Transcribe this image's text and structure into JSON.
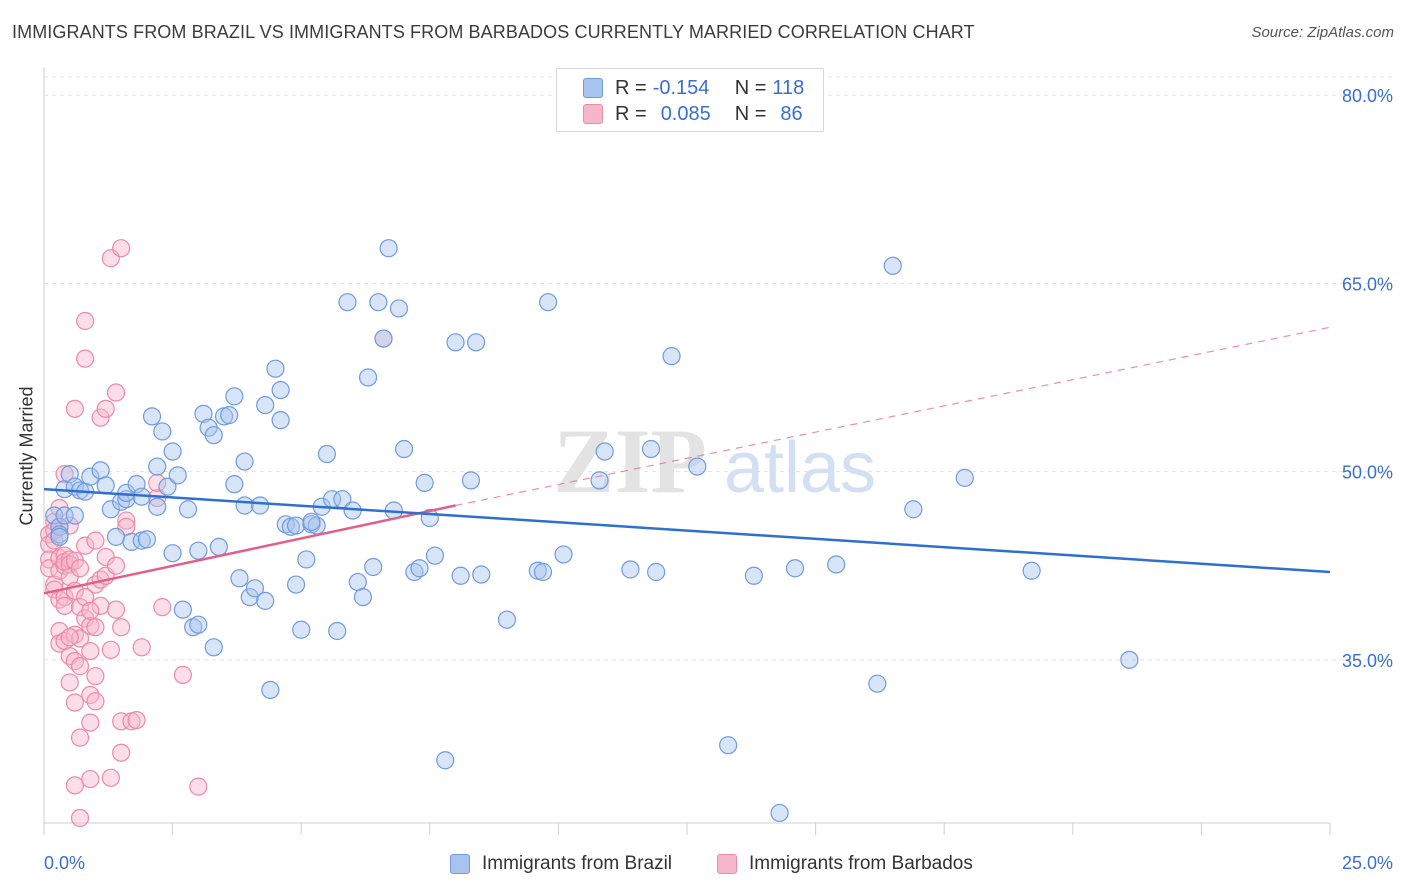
{
  "title": "IMMIGRANTS FROM BRAZIL VS IMMIGRANTS FROM BARBADOS CURRENTLY MARRIED CORRELATION CHART",
  "source": "Source: ZipAtlas.com",
  "legend": {
    "rows": [
      {
        "r_label": "R =",
        "r_value": "-0.154",
        "n_label": "N =",
        "n_value": "118"
      },
      {
        "r_label": "R =",
        "r_value": "0.085",
        "n_label": "N =",
        "n_value": "86"
      }
    ]
  },
  "watermark": {
    "zip": "ZIP",
    "atlas": "atlas"
  },
  "colors": {
    "brazil_fill": "#a8c4ee",
    "brazil_stroke": "#6f9be0",
    "brazil_line": "#2f6fd0",
    "barbados_fill": "#f6b6c9",
    "barbados_stroke": "#ec8aa8",
    "barbados_line": "#e0608a",
    "tick_label": "#3a6fd0",
    "grid": "#e1e1e1"
  },
  "chart_data": {
    "type": "scatter",
    "title": "IMMIGRANTS FROM BRAZIL VS IMMIGRANTS FROM BARBADOS CURRENTLY MARRIED CORRELATION CHART",
    "xlabel": "",
    "ylabel": "Currently Married",
    "xlim": [
      0,
      25
    ],
    "ylim": [
      22,
      82
    ],
    "x_tick_labels": [
      "0.0%",
      "25.0%"
    ],
    "y_ticks": [
      35,
      50,
      65,
      80
    ],
    "y_tick_labels": [
      "35.0%",
      "50.0%",
      "65.0%",
      "80.0%"
    ],
    "grid": "horizontal dashed",
    "legend_placement": "top-center and bottom",
    "series": [
      {
        "name": "Immigrants from Brazil",
        "r": -0.154,
        "n": 118,
        "trend": {
          "x": [
            0,
            25
          ],
          "y": [
            48.6,
            42.0
          ],
          "style": "solid"
        },
        "points": [
          [
            0.2,
            46.5
          ],
          [
            0.3,
            45.6
          ],
          [
            0.3,
            45.0
          ],
          [
            0.4,
            46.5
          ],
          [
            0.4,
            48.6
          ],
          [
            0.5,
            49.8
          ],
          [
            0.6,
            48.8
          ],
          [
            0.6,
            46.5
          ],
          [
            0.7,
            48.5
          ],
          [
            0.8,
            48.4
          ],
          [
            0.9,
            49.6
          ],
          [
            1.1,
            50.1
          ],
          [
            1.2,
            48.9
          ],
          [
            1.3,
            47.0
          ],
          [
            1.4,
            44.8
          ],
          [
            1.5,
            47.6
          ],
          [
            1.6,
            47.8
          ],
          [
            1.6,
            48.3
          ],
          [
            1.7,
            44.4
          ],
          [
            1.8,
            49.0
          ],
          [
            1.9,
            44.5
          ],
          [
            1.9,
            48.0
          ],
          [
            2.0,
            44.6
          ],
          [
            2.1,
            54.4
          ],
          [
            2.2,
            50.4
          ],
          [
            2.2,
            47.2
          ],
          [
            2.3,
            53.2
          ],
          [
            2.4,
            48.8
          ],
          [
            2.5,
            51.6
          ],
          [
            2.5,
            43.5
          ],
          [
            2.6,
            49.7
          ],
          [
            2.7,
            39.0
          ],
          [
            2.8,
            47.0
          ],
          [
            2.9,
            37.6
          ],
          [
            3.0,
            43.7
          ],
          [
            3.0,
            37.8
          ],
          [
            3.1,
            54.6
          ],
          [
            3.2,
            53.5
          ],
          [
            3.3,
            52.9
          ],
          [
            3.4,
            44.0
          ],
          [
            3.5,
            54.4
          ],
          [
            3.6,
            54.5
          ],
          [
            3.7,
            49.0
          ],
          [
            3.7,
            56.0
          ],
          [
            3.8,
            41.5
          ],
          [
            3.9,
            47.3
          ],
          [
            3.9,
            50.8
          ],
          [
            4.0,
            40.0
          ],
          [
            4.1,
            40.7
          ],
          [
            4.2,
            47.3
          ],
          [
            4.3,
            39.7
          ],
          [
            4.3,
            55.3
          ],
          [
            4.4,
            32.6
          ],
          [
            4.5,
            58.2
          ],
          [
            4.6,
            54.1
          ],
          [
            4.6,
            56.5
          ],
          [
            4.7,
            45.8
          ],
          [
            4.8,
            45.6
          ],
          [
            4.9,
            45.7
          ],
          [
            4.9,
            41.0
          ],
          [
            5.0,
            37.4
          ],
          [
            5.1,
            43.0
          ],
          [
            5.2,
            45.8
          ],
          [
            5.3,
            45.7
          ],
          [
            5.4,
            47.2
          ],
          [
            5.5,
            51.4
          ],
          [
            5.6,
            47.8
          ],
          [
            5.7,
            37.3
          ],
          [
            5.8,
            47.8
          ],
          [
            5.9,
            63.5
          ],
          [
            6.0,
            46.9
          ],
          [
            6.1,
            41.2
          ],
          [
            6.2,
            40.0
          ],
          [
            6.3,
            57.5
          ],
          [
            6.4,
            42.4
          ],
          [
            6.5,
            63.5
          ],
          [
            6.6,
            60.6
          ],
          [
            6.7,
            67.8
          ],
          [
            6.8,
            46.9
          ],
          [
            6.9,
            63.0
          ],
          [
            7.0,
            51.8
          ],
          [
            7.2,
            42.0
          ],
          [
            7.3,
            42.3
          ],
          [
            7.4,
            49.1
          ],
          [
            7.5,
            46.3
          ],
          [
            7.6,
            43.3
          ],
          [
            8.0,
            60.3
          ],
          [
            8.1,
            41.7
          ],
          [
            8.3,
            49.3
          ],
          [
            8.4,
            60.3
          ],
          [
            8.5,
            41.8
          ],
          [
            9.0,
            38.2
          ],
          [
            9.6,
            42.1
          ],
          [
            9.7,
            42.0
          ],
          [
            9.8,
            63.5
          ],
          [
            10.1,
            43.4
          ],
          [
            10.8,
            49.3
          ],
          [
            10.9,
            51.6
          ],
          [
            11.4,
            42.2
          ],
          [
            11.8,
            51.8
          ],
          [
            11.9,
            42.0
          ],
          [
            12.2,
            59.2
          ],
          [
            12.7,
            50.4
          ],
          [
            13.3,
            28.2
          ],
          [
            13.8,
            41.7
          ],
          [
            14.3,
            22.8
          ],
          [
            14.6,
            42.3
          ],
          [
            15.4,
            42.6
          ],
          [
            16.2,
            33.1
          ],
          [
            16.5,
            66.4
          ],
          [
            16.9,
            47.0
          ],
          [
            17.9,
            49.5
          ],
          [
            19.2,
            42.1
          ],
          [
            21.1,
            35.0
          ],
          [
            5.2,
            46.0
          ],
          [
            3.3,
            36.0
          ],
          [
            7.8,
            27.0
          ],
          [
            0.3,
            44.8
          ]
        ]
      },
      {
        "name": "Immigrants from Barbados",
        "r": 0.085,
        "n": 86,
        "trend": {
          "x": [
            0,
            8.0
          ],
          "y": [
            40.3,
            47.3
          ],
          "style": "solid",
          "extended_x": [
            8.0,
            25
          ],
          "extended_y": [
            47.3,
            61.5
          ],
          "extended_style": "dashed"
        },
        "points": [
          [
            0.1,
            45.0
          ],
          [
            0.1,
            44.2
          ],
          [
            0.1,
            43.0
          ],
          [
            0.1,
            42.3
          ],
          [
            0.2,
            46.0
          ],
          [
            0.2,
            45.3
          ],
          [
            0.2,
            44.5
          ],
          [
            0.2,
            41.0
          ],
          [
            0.2,
            40.6
          ],
          [
            0.3,
            47.1
          ],
          [
            0.3,
            45.6
          ],
          [
            0.3,
            43.1
          ],
          [
            0.3,
            42.1
          ],
          [
            0.3,
            39.8
          ],
          [
            0.3,
            37.3
          ],
          [
            0.3,
            36.3
          ],
          [
            0.4,
            49.8
          ],
          [
            0.4,
            43.3
          ],
          [
            0.4,
            42.5
          ],
          [
            0.4,
            42.8
          ],
          [
            0.4,
            40.0
          ],
          [
            0.4,
            39.3
          ],
          [
            0.4,
            36.5
          ],
          [
            0.5,
            45.7
          ],
          [
            0.5,
            43.0
          ],
          [
            0.5,
            42.6
          ],
          [
            0.5,
            41.6
          ],
          [
            0.5,
            35.3
          ],
          [
            0.5,
            33.2
          ],
          [
            0.6,
            55.0
          ],
          [
            0.6,
            42.9
          ],
          [
            0.6,
            40.5
          ],
          [
            0.6,
            37.0
          ],
          [
            0.6,
            34.9
          ],
          [
            0.6,
            31.6
          ],
          [
            0.6,
            25.0
          ],
          [
            0.7,
            42.3
          ],
          [
            0.7,
            39.2
          ],
          [
            0.7,
            36.7
          ],
          [
            0.7,
            34.5
          ],
          [
            0.7,
            28.8
          ],
          [
            0.7,
            22.4
          ],
          [
            0.8,
            62.0
          ],
          [
            0.8,
            59.0
          ],
          [
            0.8,
            44.1
          ],
          [
            0.8,
            40.0
          ],
          [
            0.8,
            38.3
          ],
          [
            0.9,
            37.7
          ],
          [
            0.9,
            35.7
          ],
          [
            0.9,
            32.2
          ],
          [
            0.9,
            30.0
          ],
          [
            0.9,
            25.5
          ],
          [
            1.0,
            44.5
          ],
          [
            1.0,
            41.0
          ],
          [
            1.0,
            37.6
          ],
          [
            1.0,
            33.7
          ],
          [
            1.0,
            31.7
          ],
          [
            1.1,
            54.3
          ],
          [
            1.1,
            41.4
          ],
          [
            1.1,
            39.3
          ],
          [
            1.2,
            55.0
          ],
          [
            1.2,
            43.2
          ],
          [
            1.2,
            41.7
          ],
          [
            1.3,
            67.0
          ],
          [
            1.3,
            35.8
          ],
          [
            1.3,
            25.6
          ],
          [
            1.4,
            56.3
          ],
          [
            1.4,
            39.0
          ],
          [
            1.5,
            67.8
          ],
          [
            1.5,
            37.6
          ],
          [
            1.5,
            30.1
          ],
          [
            1.5,
            27.6
          ],
          [
            1.6,
            46.1
          ],
          [
            1.6,
            45.6
          ],
          [
            1.7,
            30.1
          ],
          [
            1.8,
            30.2
          ],
          [
            1.9,
            36.0
          ],
          [
            2.2,
            47.9
          ],
          [
            2.2,
            49.1
          ],
          [
            2.3,
            39.2
          ],
          [
            2.7,
            33.8
          ],
          [
            3.0,
            24.9
          ],
          [
            6.6,
            60.6
          ],
          [
            1.4,
            42.5
          ],
          [
            0.9,
            38.9
          ],
          [
            0.5,
            36.8
          ]
        ]
      }
    ]
  },
  "bottom_legend": {
    "brazil": "Immigrants from Brazil",
    "barbados": "Immigrants from Barbados"
  }
}
